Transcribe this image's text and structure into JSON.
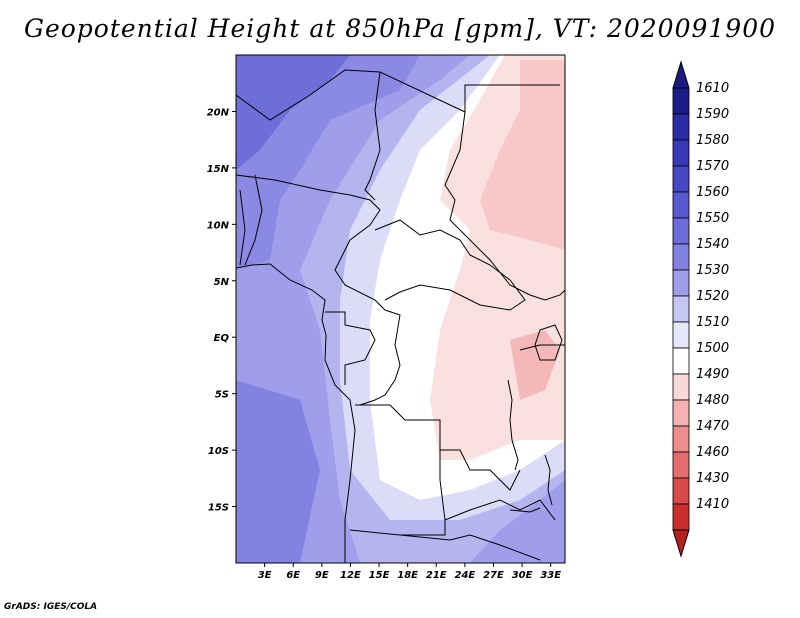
{
  "title": "Geopotential Height at 850hPa [gpm], VT: 2020091900",
  "footer": "GrADS: IGES/COLA",
  "map": {
    "projection": "lat-lon",
    "lon_range": [
      0,
      34.5
    ],
    "lat_range": [
      -20,
      25
    ],
    "x_ticks": [
      {
        "value": 3,
        "label": "3E"
      },
      {
        "value": 6,
        "label": "6E"
      },
      {
        "value": 9,
        "label": "9E"
      },
      {
        "value": 12,
        "label": "12E"
      },
      {
        "value": 15,
        "label": "15E"
      },
      {
        "value": 18,
        "label": "18E"
      },
      {
        "value": 21,
        "label": "21E"
      },
      {
        "value": 24,
        "label": "24E"
      },
      {
        "value": 27,
        "label": "27E"
      },
      {
        "value": 30,
        "label": "30E"
      },
      {
        "value": 33,
        "label": "33E"
      }
    ],
    "y_ticks": [
      {
        "value": 20,
        "label": "20N"
      },
      {
        "value": 15,
        "label": "15N"
      },
      {
        "value": 10,
        "label": "10N"
      },
      {
        "value": 5,
        "label": "5N"
      },
      {
        "value": 0,
        "label": "EQ"
      },
      {
        "value": -5,
        "label": "5S"
      },
      {
        "value": -10,
        "label": "10S"
      },
      {
        "value": -15,
        "label": "15S"
      }
    ]
  },
  "colorbar": {
    "levels": [
      {
        "label": "1610",
        "color": "#1c1c8a"
      },
      {
        "label": "1590",
        "color": "#2b2ba6"
      },
      {
        "label": "1580",
        "color": "#3939b8"
      },
      {
        "label": "1570",
        "color": "#4848c4"
      },
      {
        "label": "1560",
        "color": "#5959d0"
      },
      {
        "label": "1550",
        "color": "#6d6dda"
      },
      {
        "label": "1540",
        "color": "#8282e2"
      },
      {
        "label": "1530",
        "color": "#9e9eea"
      },
      {
        "label": "1520",
        "color": "#c6c6f2"
      },
      {
        "label": "1510",
        "color": "#e6e6fa"
      },
      {
        "label": "1500",
        "color": "#ffffff"
      },
      {
        "label": "1490",
        "color": "#fbd8d8"
      },
      {
        "label": "1480",
        "color": "#f4b2b2"
      },
      {
        "label": "1470",
        "color": "#ec8e8e"
      },
      {
        "label": "1460",
        "color": "#e46c6c"
      },
      {
        "label": "1430",
        "color": "#db4a4a"
      },
      {
        "label": "1410",
        "color": "#cc2e2e"
      }
    ],
    "top_color": "#1a1a80",
    "bottom_color": "#b82020"
  }
}
